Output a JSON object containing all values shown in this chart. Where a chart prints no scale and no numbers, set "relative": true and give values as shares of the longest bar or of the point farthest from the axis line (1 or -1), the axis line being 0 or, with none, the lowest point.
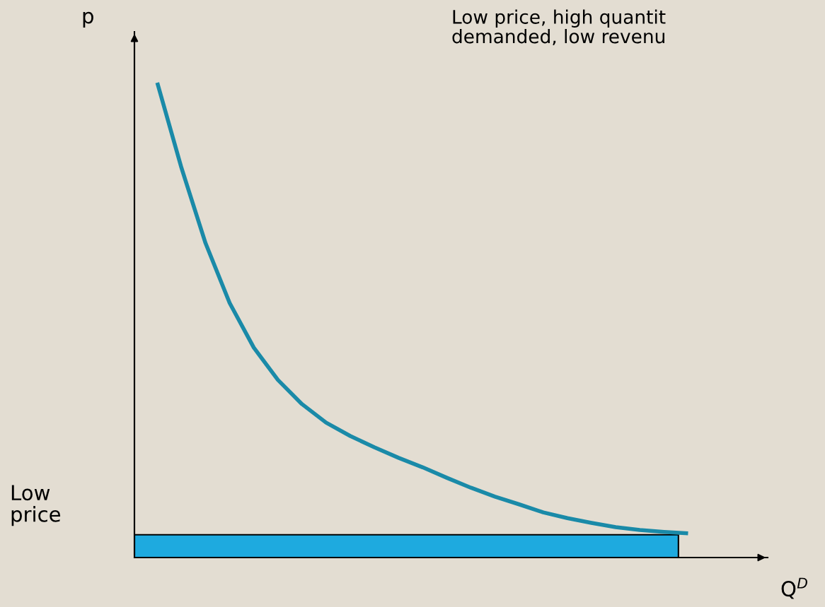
{
  "chart_data": {
    "type": "line",
    "relative": true,
    "ylabel": "p",
    "annotations": [
      "Low price, high quantit\ndemanded, low revenu",
      "Low\nprice",
      "Q$^{D}$"
    ],
    "categories": [
      null,
      null,
      null,
      null,
      null,
      null,
      null,
      null,
      null,
      null,
      null,
      null,
      null,
      null,
      null,
      null,
      null,
      null,
      null,
      null,
      null,
      null,
      null
    ],
    "bands": [
      {
        "axis": "y",
        "from": 0,
        "to": 0.048,
        "color": "#1eaadf"
      }
    ],
    "series": [
      {
        "color": "#1a8aa8",
        "values": [
          1.0,
          0.821,
          0.662,
          0.536,
          0.442,
          0.374,
          0.323,
          0.284,
          0.256,
          0.232,
          0.21,
          0.19,
          0.168,
          0.147,
          0.128,
          0.112,
          0.095,
          0.083,
          0.073,
          0.064,
          0.058,
          0.054,
          0.051
        ]
      }
    ]
  }
}
